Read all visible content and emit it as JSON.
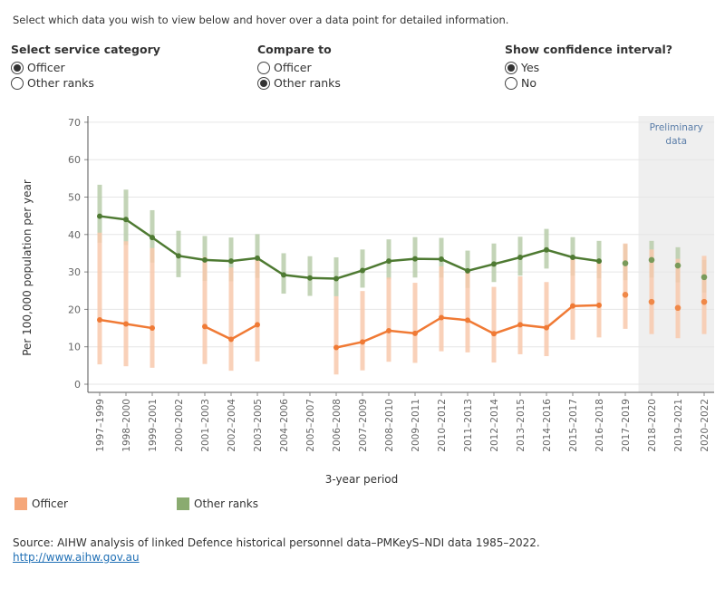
{
  "instructions": "Select which data you wish to view below and hover over a data point for detailed information.",
  "controls": {
    "service_category": {
      "title": "Select service category",
      "options": [
        "Officer",
        "Other ranks"
      ],
      "selected": 0
    },
    "compare_to": {
      "title": "Compare to",
      "options": [
        "Officer",
        "Other ranks"
      ],
      "selected": 1
    },
    "confidence_interval": {
      "title": "Show confidence interval?",
      "options": [
        "Yes",
        "No"
      ],
      "selected": 0
    }
  },
  "legend": [
    {
      "label": "Officer",
      "color": "#f5a77a"
    },
    {
      "label": "Other ranks",
      "color": "#8aab70"
    }
  ],
  "source": "Source: AIHW analysis of linked Defence historical personnel data–PMKeyS–NDI data 1985–2022.",
  "link": "http://www.aihw.gov.au",
  "colors": {
    "officer_line": "#f07a35",
    "officer_ci": "#f8c9ad",
    "other_line": "#4e7a32",
    "other_ci": "#b8ccaa",
    "other_prelim": "#7a9a5a",
    "officer_prelim": "#f08848",
    "prelim_bg": "#efefef",
    "prelim_text": "#5a7da8"
  },
  "chart_data": {
    "type": "line",
    "xlabel": "3-year period",
    "ylabel": "Per 100,000 population per year",
    "ylim": [
      0,
      70
    ],
    "yticks": [
      0,
      10,
      20,
      30,
      40,
      50,
      60,
      70
    ],
    "grid": true,
    "preliminary_label": [
      "Preliminary",
      "data"
    ],
    "preliminary_from": "2018–2020",
    "categories": [
      "1997–1999",
      "1998–2000",
      "1999–2001",
      "2000–2002",
      "2001–2003",
      "2002–2004",
      "2003–2005",
      "2004–2006",
      "2005–2007",
      "2006–2008",
      "2007–2009",
      "2008–2010",
      "2009–2011",
      "2010–2012",
      "2011–2013",
      "2012–2014",
      "2013–2015",
      "2014–2016",
      "2015–2017",
      "2016–2018",
      "2017–2019",
      "2018–2020",
      "2019–2021",
      "2020–2022"
    ],
    "series": [
      {
        "name": "Other ranks",
        "values": [
          44.9,
          44.0,
          39.2,
          34.3,
          33.2,
          32.9,
          33.7,
          29.2,
          28.4,
          28.2,
          30.4,
          32.9,
          33.5,
          33.4,
          30.3,
          32.1,
          33.9,
          35.9,
          33.9,
          32.9,
          32.3,
          33.2,
          31.7,
          28.6
        ],
        "ci_low": [
          37.8,
          37.2,
          32.5,
          28.6,
          27.6,
          27.5,
          28.4,
          24.2,
          23.6,
          23.5,
          25.8,
          28.0,
          28.5,
          28.5,
          25.7,
          27.3,
          29.0,
          30.9,
          29.0,
          28.3,
          27.8,
          28.5,
          27.2,
          24.5
        ],
        "ci_high": [
          53.3,
          52.0,
          46.5,
          41.0,
          39.6,
          39.2,
          40.1,
          35.0,
          34.2,
          33.9,
          36.0,
          38.7,
          39.3,
          39.1,
          35.7,
          37.6,
          39.4,
          41.5,
          39.3,
          38.3,
          37.4,
          38.3,
          36.6,
          33.2
        ]
      },
      {
        "name": "Officer",
        "values": [
          17.2,
          16.1,
          15.0,
          null,
          15.4,
          12.0,
          15.9,
          null,
          null,
          9.8,
          11.3,
          14.3,
          13.6,
          17.8,
          17.1,
          13.5,
          15.9,
          15.1,
          20.9,
          21.1,
          23.9,
          22.0,
          20.4,
          22.0
        ],
        "ci_low": [
          5.3,
          4.8,
          4.4,
          null,
          5.4,
          3.6,
          6.1,
          null,
          null,
          2.6,
          3.7,
          6.0,
          5.7,
          8.8,
          8.5,
          5.8,
          8.0,
          7.5,
          11.9,
          12.5,
          14.8,
          13.4,
          12.3,
          13.4
        ],
        "ci_high": [
          40.5,
          38.2,
          36.4,
          null,
          34.0,
          31.2,
          33.6,
          null,
          null,
          23.5,
          24.9,
          28.5,
          27.1,
          31.5,
          30.0,
          26.0,
          28.8,
          27.3,
          33.6,
          33.1,
          37.6,
          36.0,
          33.5,
          34.3
        ]
      }
    ]
  }
}
